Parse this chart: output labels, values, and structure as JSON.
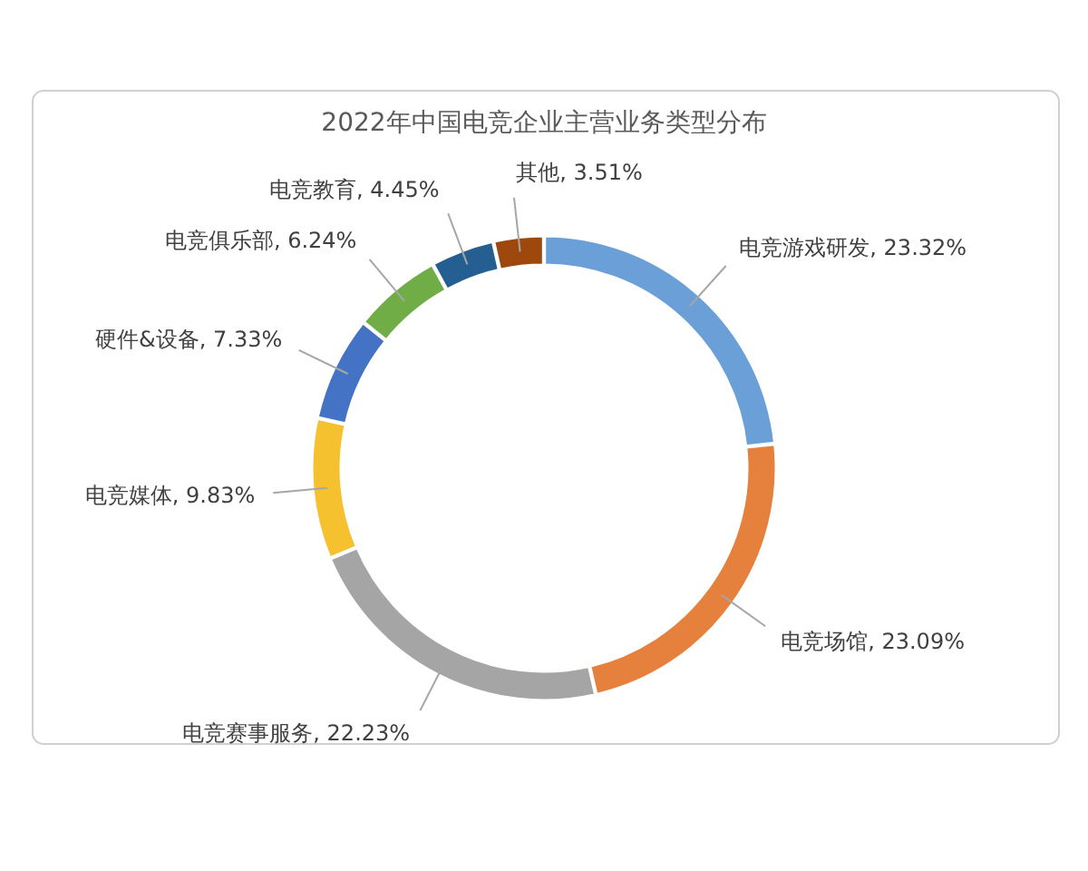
{
  "chart_data": {
    "type": "donut",
    "title": "2022年中国电竞企业主营业务类型分布",
    "categories": [
      "电竞游戏研发",
      "电竞场馆",
      "电竞赛事服务",
      "电竞媒体",
      "硬件&设备",
      "电竞俱乐部",
      "电竞教育",
      "其他"
    ],
    "values": [
      23.32,
      23.09,
      22.23,
      9.83,
      7.33,
      6.24,
      4.45,
      3.51
    ],
    "colors": [
      "#6a9fd8",
      "#e5813d",
      "#a5a5a5",
      "#f5c12e",
      "#4472c4",
      "#70ad47",
      "#255e91",
      "#9e480e"
    ],
    "value_labels": [
      ", 23.32%",
      ", 23.09%",
      ", 22.23%",
      ", 9.83%",
      ", 7.33%",
      ", 6.24%",
      ", 4.45%",
      ", 3.51%"
    ]
  }
}
